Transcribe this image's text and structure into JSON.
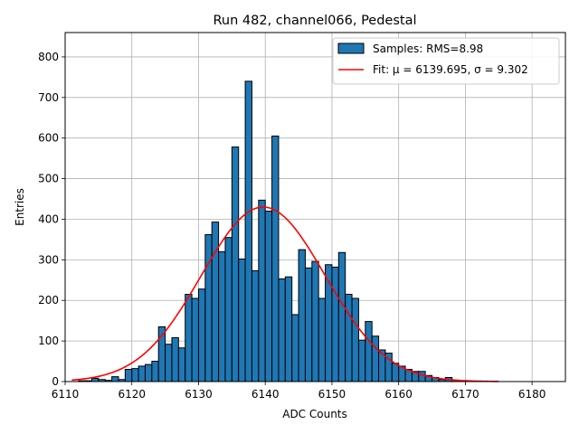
{
  "chart_data": {
    "type": "bar",
    "title": "Run 482, channel066, Pedestal",
    "xlabel": "ADC Counts",
    "ylabel": "Entries",
    "xlim": [
      6110,
      6185
    ],
    "ylim": [
      0,
      860
    ],
    "xticks": [
      6110,
      6120,
      6130,
      6140,
      6150,
      6160,
      6170,
      6180
    ],
    "yticks": [
      0,
      100,
      200,
      300,
      400,
      500,
      600,
      700,
      800
    ],
    "grid": true,
    "legend_position": "top-right",
    "bin_width": 1,
    "series": [
      {
        "name": "Samples: RMS=8.98",
        "kind": "histogram",
        "color": "#1f77b4",
        "edge_color": "#000000",
        "bins": [
          [
            6112,
            2
          ],
          [
            6113,
            2
          ],
          [
            6114,
            8
          ],
          [
            6115,
            5
          ],
          [
            6116,
            3
          ],
          [
            6117,
            12
          ],
          [
            6118,
            5
          ],
          [
            6119,
            30
          ],
          [
            6120,
            32
          ],
          [
            6121,
            38
          ],
          [
            6122,
            42
          ],
          [
            6123,
            50
          ],
          [
            6124,
            135
          ],
          [
            6125,
            92
          ],
          [
            6126,
            108
          ],
          [
            6127,
            83
          ],
          [
            6128,
            215
          ],
          [
            6129,
            205
          ],
          [
            6130,
            228
          ],
          [
            6131,
            362
          ],
          [
            6132,
            393
          ],
          [
            6133,
            320
          ],
          [
            6134,
            355
          ],
          [
            6135,
            578
          ],
          [
            6136,
            302
          ],
          [
            6137,
            740
          ],
          [
            6138,
            273
          ],
          [
            6139,
            447
          ],
          [
            6140,
            420
          ],
          [
            6141,
            605
          ],
          [
            6142,
            253
          ],
          [
            6143,
            258
          ],
          [
            6144,
            165
          ],
          [
            6145,
            325
          ],
          [
            6146,
            280
          ],
          [
            6147,
            296
          ],
          [
            6148,
            205
          ],
          [
            6149,
            288
          ],
          [
            6150,
            282
          ],
          [
            6151,
            318
          ],
          [
            6152,
            215
          ],
          [
            6153,
            205
          ],
          [
            6154,
            102
          ],
          [
            6155,
            148
          ],
          [
            6156,
            112
          ],
          [
            6157,
            78
          ],
          [
            6158,
            70
          ],
          [
            6159,
            45
          ],
          [
            6160,
            38
          ],
          [
            6161,
            30
          ],
          [
            6162,
            25
          ],
          [
            6163,
            25
          ],
          [
            6164,
            15
          ],
          [
            6165,
            10
          ],
          [
            6166,
            5
          ],
          [
            6167,
            10
          ],
          [
            6168,
            3
          ],
          [
            6169,
            2
          ]
        ]
      },
      {
        "name": "Fit: μ = 6139.695, σ = 9.302",
        "kind": "gaussian-fit",
        "color": "#ff0000",
        "mu": 6139.695,
        "sigma": 9.302,
        "peak": 430,
        "x_range": [
          6111,
          6175
        ]
      }
    ]
  }
}
